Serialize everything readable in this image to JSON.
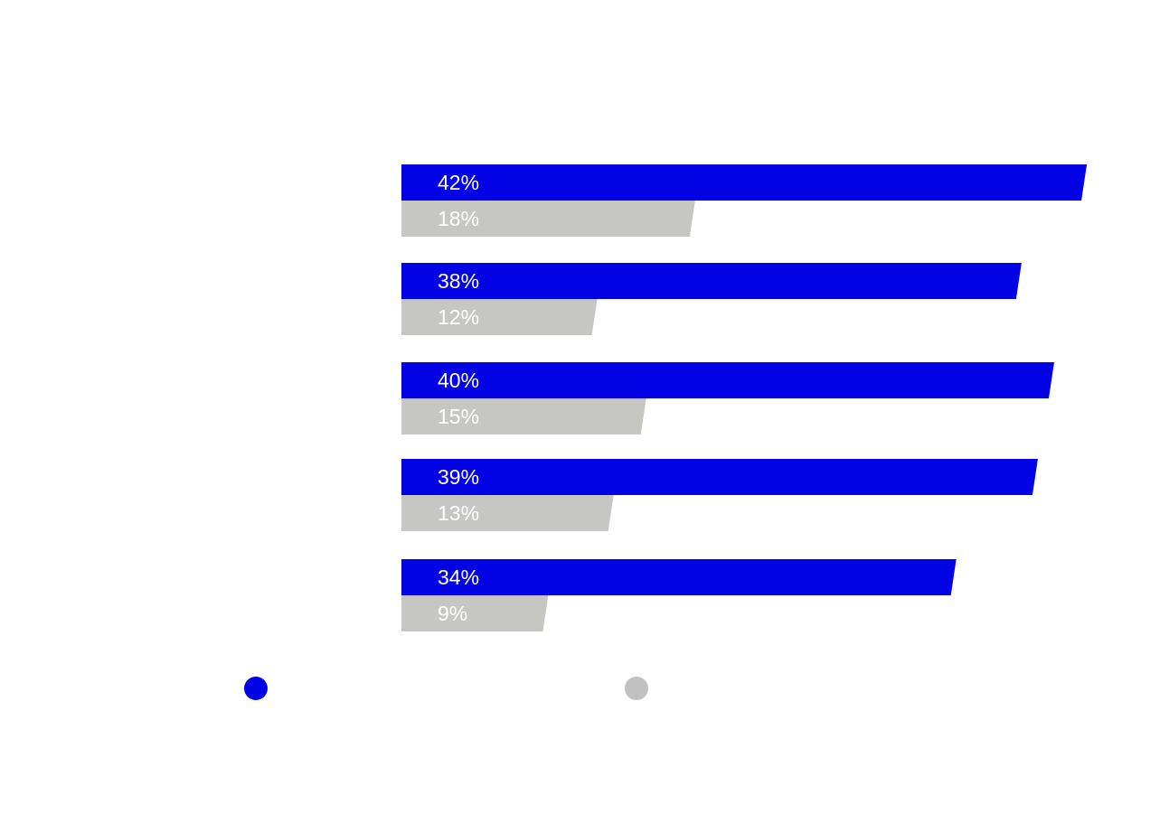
{
  "chart_data": {
    "type": "bar",
    "orientation": "horizontal",
    "categories": [
      "",
      "",
      "",
      "",
      ""
    ],
    "series": [
      {
        "name": "",
        "color": "#0303e6",
        "values": [
          42,
          38,
          40,
          39,
          34
        ]
      },
      {
        "name": "",
        "color": "#c6c6c2",
        "values": [
          18,
          12,
          15,
          13,
          9
        ]
      }
    ],
    "value_labels": [
      [
        "42%",
        "38%",
        "40%",
        "39%",
        "34%"
      ],
      [
        "18%",
        "12%",
        "15%",
        "13%",
        "9%"
      ]
    ],
    "xlim": [
      0,
      44
    ],
    "title": "",
    "xlabel": "",
    "ylabel": "",
    "grid": false,
    "legend_position": "bottom",
    "legend_colors": [
      "#0303e6",
      "#c0c0c0"
    ]
  }
}
